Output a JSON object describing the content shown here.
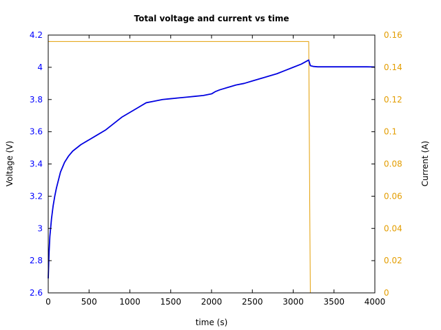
{
  "chart_data": {
    "type": "line",
    "title": "Total voltage and current vs time",
    "xlabel": "time (s)",
    "ylabel_left": "Voltage (V)",
    "ylabel_right": "Current (A)",
    "xlim": [
      0,
      4000
    ],
    "ylim_left": [
      2.6,
      4.2
    ],
    "ylim_right": [
      0,
      0.16
    ],
    "x_ticks": [
      "0",
      "500",
      "1000",
      "1500",
      "2000",
      "2500",
      "3000",
      "3500",
      "4000"
    ],
    "y_left_ticks": [
      "2.6",
      "2.8",
      "3",
      "3.2",
      "3.4",
      "3.6",
      "3.8",
      "4",
      "4.2"
    ],
    "y_right_ticks": [
      "0",
      "0.02",
      "0.04",
      "0.06",
      "0.08",
      "0.1",
      "0.12",
      "0.14",
      "0.16"
    ],
    "grid": false,
    "colors": {
      "voltage": "#0000e0",
      "current": "#e39d00",
      "left_axis": "#0000ff",
      "right_axis": "#e39d00"
    },
    "series": [
      {
        "axis": "left",
        "x": [
          0,
          5,
          10,
          20,
          40,
          60,
          80,
          100,
          150,
          200,
          250,
          300,
          400,
          500,
          600,
          700,
          800,
          900,
          1000,
          1100,
          1200,
          1300,
          1400,
          1500,
          1600,
          1700,
          1800,
          1900,
          2000,
          2050,
          2100,
          2200,
          2300,
          2400,
          2500,
          2600,
          2700,
          2800,
          2900,
          3000,
          3100,
          3190,
          3210,
          3250,
          3300,
          3400,
          3500,
          3600,
          3700,
          3800,
          3900,
          3990,
          4000
        ],
        "y": [
          2.69,
          2.77,
          2.85,
          2.95,
          3.06,
          3.14,
          3.2,
          3.25,
          3.35,
          3.41,
          3.45,
          3.48,
          3.52,
          3.55,
          3.58,
          3.61,
          3.65,
          3.69,
          3.72,
          3.75,
          3.78,
          3.79,
          3.8,
          3.805,
          3.81,
          3.815,
          3.82,
          3.825,
          3.835,
          3.85,
          3.86,
          3.875,
          3.89,
          3.9,
          3.915,
          3.93,
          3.945,
          3.96,
          3.98,
          4.0,
          4.02,
          4.045,
          4.01,
          4.005,
          4.003,
          4.003,
          4.003,
          4.003,
          4.003,
          4.003,
          4.003,
          4.002,
          4.0
        ]
      },
      {
        "axis": "right",
        "x": [
          0,
          3190,
          3210,
          4000
        ],
        "y": [
          0.156,
          0.156,
          0,
          0
        ]
      }
    ]
  }
}
